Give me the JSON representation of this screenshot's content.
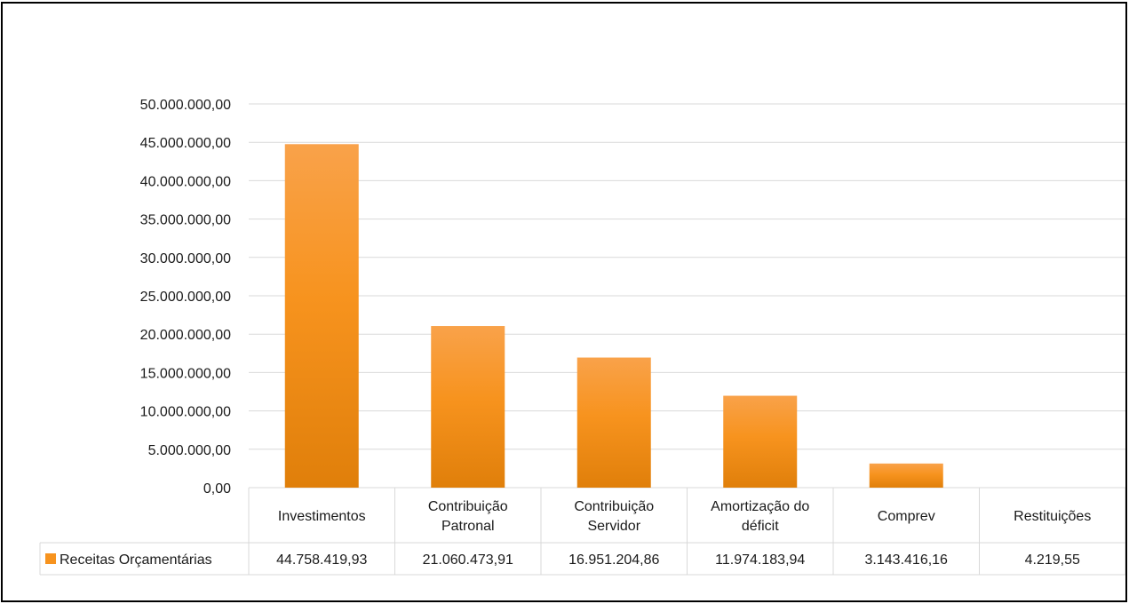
{
  "chart_data": {
    "type": "bar",
    "title": "",
    "categories": [
      [
        "Investimentos"
      ],
      [
        "Contribuição",
        "Patronal"
      ],
      [
        "Contribuição",
        "Servidor"
      ],
      [
        "Amortização do",
        "déficit"
      ],
      [
        "Comprev"
      ],
      [
        "Restituições"
      ]
    ],
    "series": [
      {
        "name": "Receitas Orçamentárias",
        "values": [
          44758419.93,
          21060473.91,
          16951204.86,
          11974183.94,
          3143416.16,
          4219.55
        ],
        "value_labels": [
          "44.758.419,93",
          "21.060.473,91",
          "16.951.204,86",
          "11.974.183,94",
          "3.143.416,16",
          "4.219,55"
        ]
      }
    ],
    "ylim": [
      0,
      50000000
    ],
    "y_ticks": [
      0,
      5000000,
      10000000,
      15000000,
      20000000,
      25000000,
      30000000,
      35000000,
      40000000,
      45000000,
      50000000
    ],
    "y_tick_labels": [
      "0,00",
      "5.000.000,00",
      "10.000.000,00",
      "15.000.000,00",
      "20.000.000,00",
      "25.000.000,00",
      "30.000.000,00",
      "35.000.000,00",
      "40.000.000,00",
      "45.000.000,00",
      "50.000.000,00"
    ],
    "grid": true,
    "data_table": true,
    "colors": {
      "bar_top": "#f9a24a",
      "bar_mid": "#f7931e",
      "bar_bottom": "#e07f0a",
      "grid": "#d9d9d9",
      "frame": "#000000",
      "legend_key": "#f7931e"
    }
  }
}
